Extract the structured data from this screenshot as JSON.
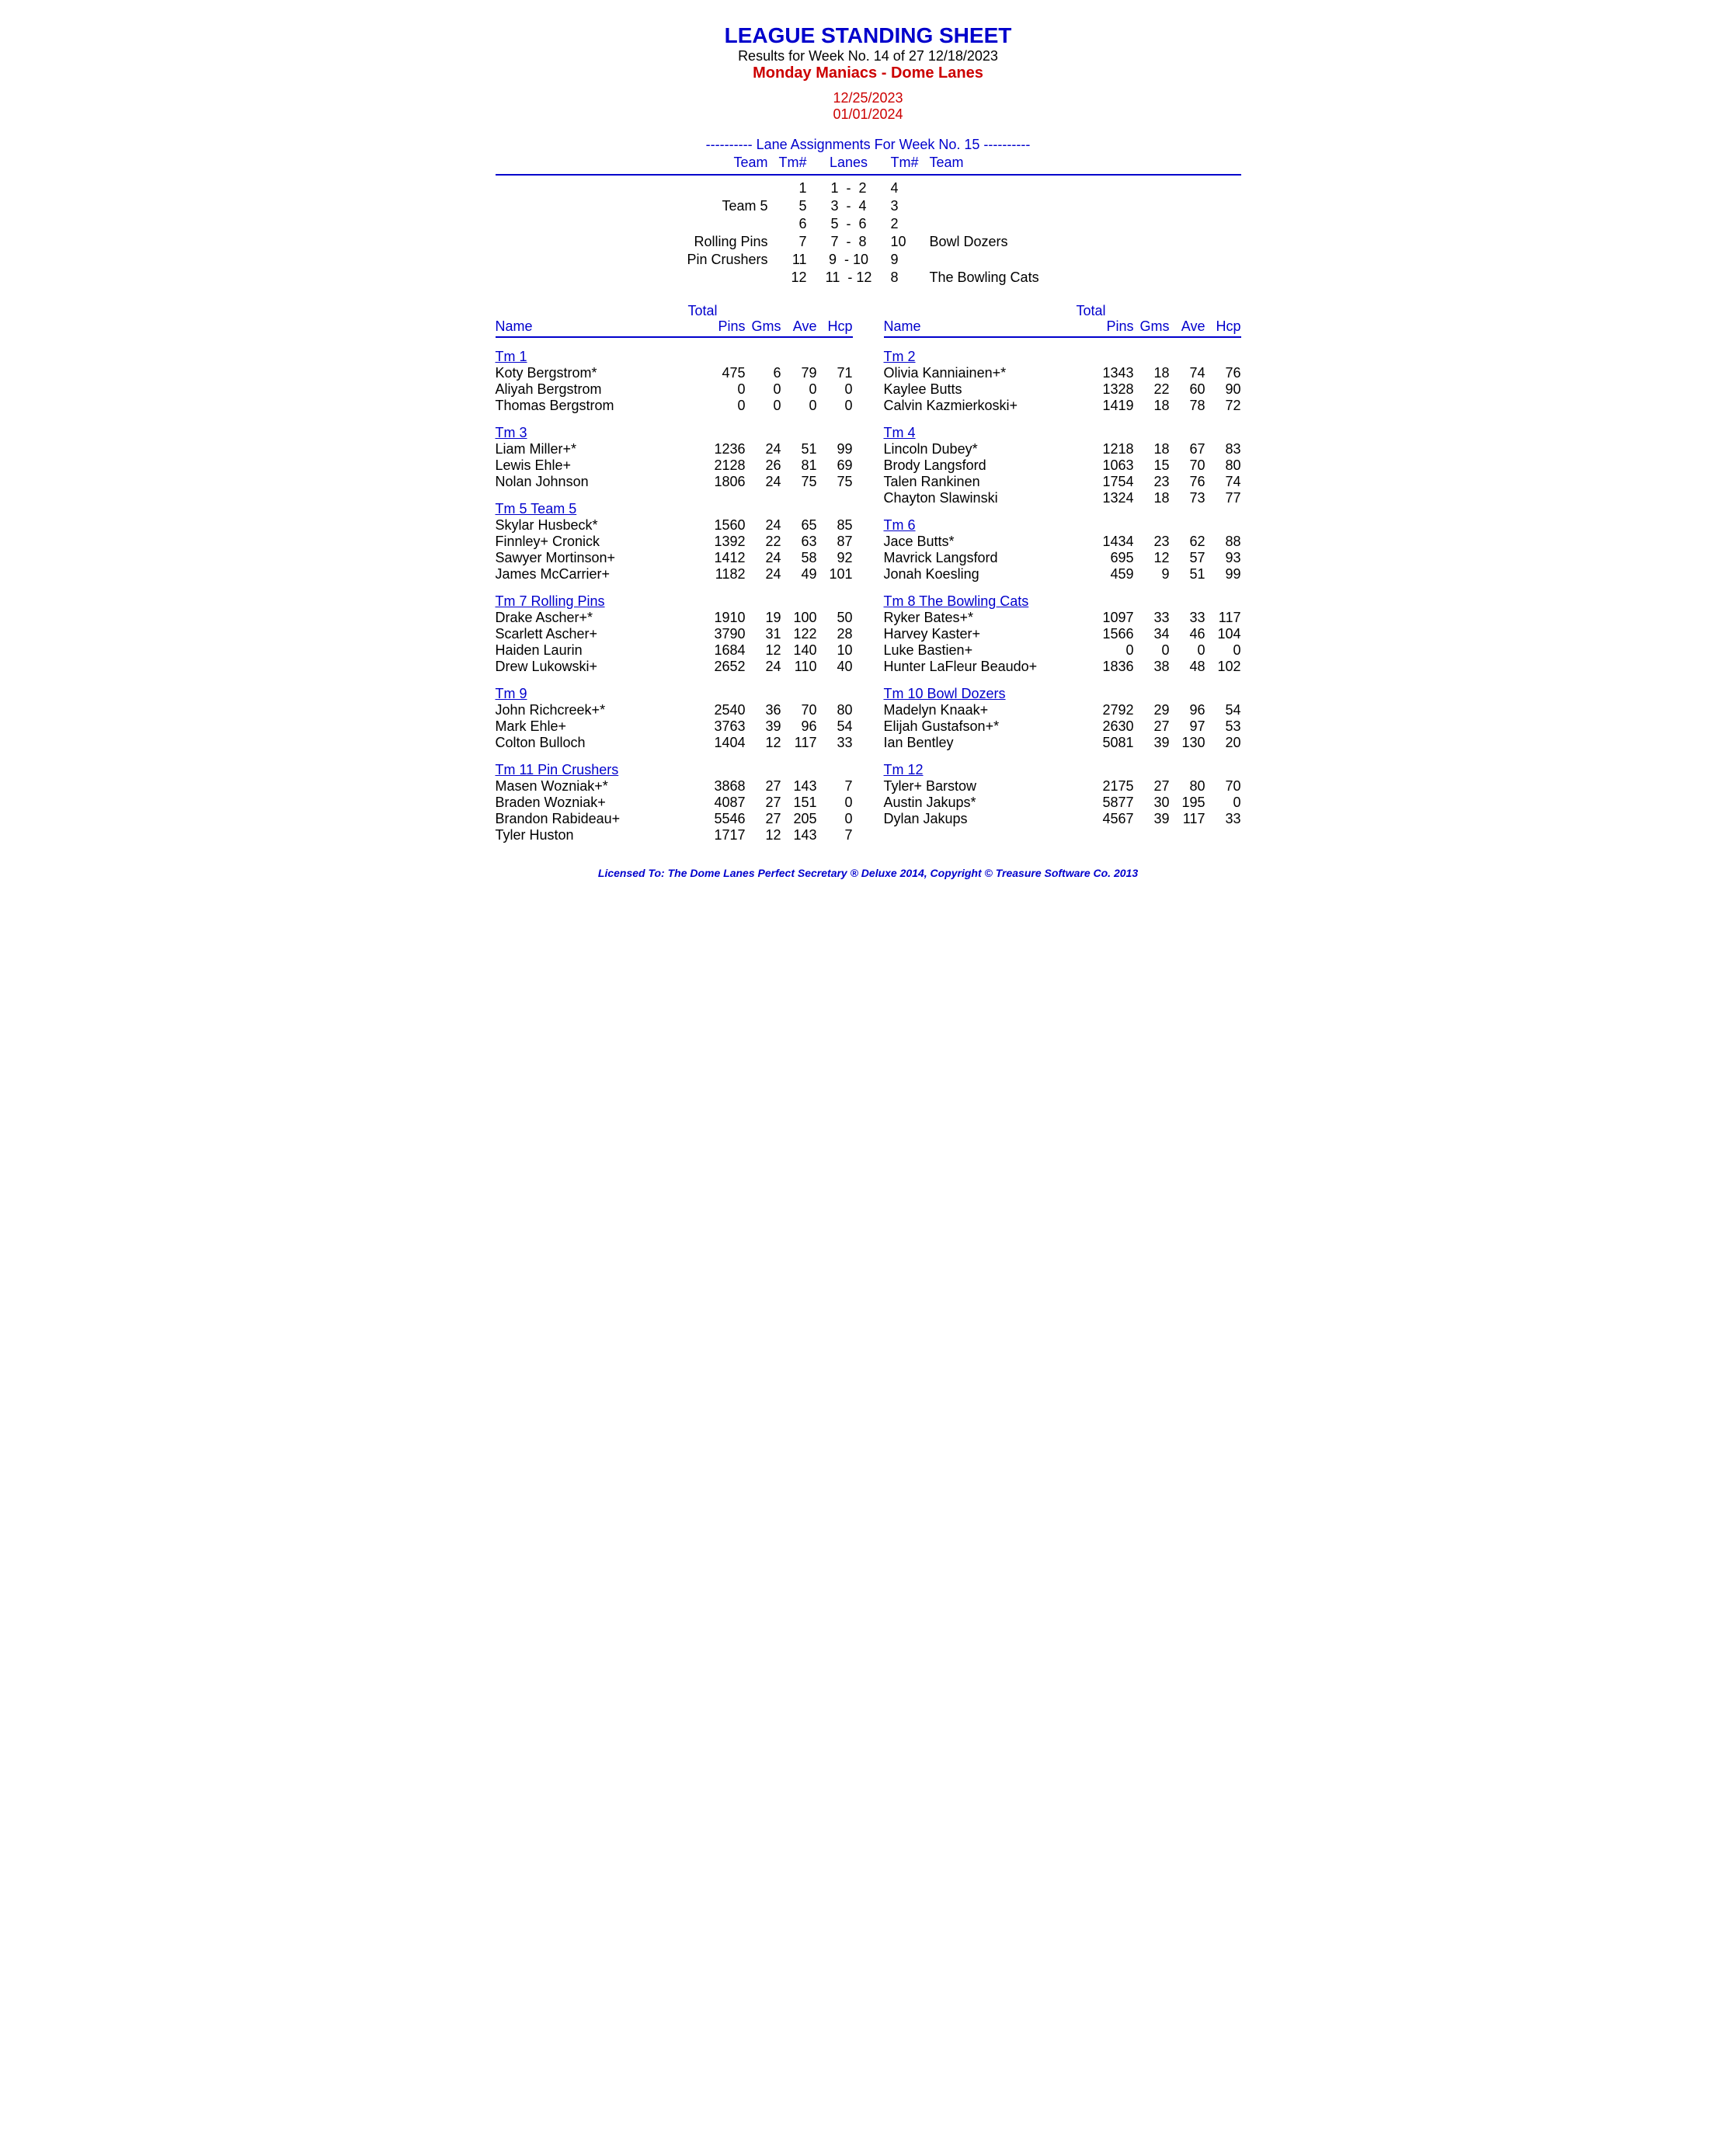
{
  "colors": {
    "blue": "#0000cc",
    "red": "#cc0000",
    "black": "#000000",
    "bg": "#ffffff"
  },
  "header": {
    "title": "LEAGUE STANDING SHEET",
    "subtitle": "Results for Week No. 14 of 27    12/18/2023",
    "league": "Monday Maniacs - Dome Lanes",
    "date1": "12/25/2023",
    "date2": "01/01/2024"
  },
  "lane": {
    "heading": "---------- Lane Assignments For Week No. 15 ----------",
    "col_labels": {
      "team": "Team",
      "tmn": "Tm#",
      "lanes": "Lanes",
      "tmn2": "Tm#",
      "team2": "Team"
    },
    "rows": [
      {
        "team": "",
        "tmn": "1",
        "lanes": "1  -  2",
        "tmn2": "4",
        "team2": ""
      },
      {
        "team": "Team 5",
        "tmn": "5",
        "lanes": "3  -  4",
        "tmn2": "3",
        "team2": ""
      },
      {
        "team": "",
        "tmn": "6",
        "lanes": "5  -  6",
        "tmn2": "2",
        "team2": ""
      },
      {
        "team": "Rolling Pins",
        "tmn": "7",
        "lanes": "7  -  8",
        "tmn2": "10",
        "team2": "Bowl Dozers"
      },
      {
        "team": "Pin Crushers",
        "tmn": "11",
        "lanes": "9  - 10",
        "tmn2": "9",
        "team2": ""
      },
      {
        "team": "",
        "tmn": "12",
        "lanes": "11  - 12",
        "tmn2": "8",
        "team2": "The Bowling Cats"
      }
    ]
  },
  "colheads": {
    "name": "Name",
    "total": "Total",
    "pins": "Pins",
    "gms": "Gms",
    "ave": "Ave",
    "hcp": "Hcp"
  },
  "left_teams": [
    {
      "name": "Tm 1",
      "players": [
        {
          "name": "Koty Bergstrom*",
          "pins": "475",
          "gms": "6",
          "ave": "79",
          "hcp": "71"
        },
        {
          "name": "Aliyah Bergstrom",
          "pins": "0",
          "gms": "0",
          "ave": "0",
          "hcp": "0"
        },
        {
          "name": "Thomas Bergstrom",
          "pins": "0",
          "gms": "0",
          "ave": "0",
          "hcp": "0"
        }
      ]
    },
    {
      "name": "Tm 3",
      "players": [
        {
          "name": "Liam Miller+*",
          "pins": "1236",
          "gms": "24",
          "ave": "51",
          "hcp": "99"
        },
        {
          "name": "Lewis Ehle+",
          "pins": "2128",
          "gms": "26",
          "ave": "81",
          "hcp": "69"
        },
        {
          "name": "Nolan Johnson",
          "pins": "1806",
          "gms": "24",
          "ave": "75",
          "hcp": "75"
        }
      ]
    },
    {
      "name": "Tm 5 Team 5",
      "players": [
        {
          "name": "Skylar Husbeck*",
          "pins": "1560",
          "gms": "24",
          "ave": "65",
          "hcp": "85"
        },
        {
          "name": "Finnley+ Cronick",
          "pins": "1392",
          "gms": "22",
          "ave": "63",
          "hcp": "87"
        },
        {
          "name": "Sawyer Mortinson+",
          "pins": "1412",
          "gms": "24",
          "ave": "58",
          "hcp": "92"
        },
        {
          "name": "James McCarrier+",
          "pins": "1182",
          "gms": "24",
          "ave": "49",
          "hcp": "101"
        }
      ]
    },
    {
      "name": "Tm 7 Rolling Pins",
      "players": [
        {
          "name": "Drake Ascher+*",
          "pins": "1910",
          "gms": "19",
          "ave": "100",
          "hcp": "50"
        },
        {
          "name": "Scarlett Ascher+",
          "pins": "3790",
          "gms": "31",
          "ave": "122",
          "hcp": "28"
        },
        {
          "name": "Haiden Laurin",
          "pins": "1684",
          "gms": "12",
          "ave": "140",
          "hcp": "10"
        },
        {
          "name": "Drew Lukowski+",
          "pins": "2652",
          "gms": "24",
          "ave": "110",
          "hcp": "40"
        }
      ]
    },
    {
      "name": "Tm 9",
      "players": [
        {
          "name": "John Richcreek+*",
          "pins": "2540",
          "gms": "36",
          "ave": "70",
          "hcp": "80"
        },
        {
          "name": "Mark Ehle+",
          "pins": "3763",
          "gms": "39",
          "ave": "96",
          "hcp": "54"
        },
        {
          "name": "Colton Bulloch",
          "pins": "1404",
          "gms": "12",
          "ave": "117",
          "hcp": "33"
        }
      ]
    },
    {
      "name": "Tm 11 Pin Crushers",
      "players": [
        {
          "name": "Masen Wozniak+*",
          "pins": "3868",
          "gms": "27",
          "ave": "143",
          "hcp": "7"
        },
        {
          "name": "Braden Wozniak+",
          "pins": "4087",
          "gms": "27",
          "ave": "151",
          "hcp": "0"
        },
        {
          "name": "Brandon Rabideau+",
          "pins": "5546",
          "gms": "27",
          "ave": "205",
          "hcp": "0"
        },
        {
          "name": "Tyler Huston",
          "pins": "1717",
          "gms": "12",
          "ave": "143",
          "hcp": "7"
        }
      ]
    }
  ],
  "right_teams": [
    {
      "name": "Tm 2",
      "players": [
        {
          "name": "Olivia Kanniainen+*",
          "pins": "1343",
          "gms": "18",
          "ave": "74",
          "hcp": "76"
        },
        {
          "name": "Kaylee Butts",
          "pins": "1328",
          "gms": "22",
          "ave": "60",
          "hcp": "90"
        },
        {
          "name": "Calvin Kazmierkoski+",
          "pins": "1419",
          "gms": "18",
          "ave": "78",
          "hcp": "72"
        }
      ]
    },
    {
      "name": "Tm 4",
      "players": [
        {
          "name": "Lincoln Dubey*",
          "pins": "1218",
          "gms": "18",
          "ave": "67",
          "hcp": "83"
        },
        {
          "name": "Brody Langsford",
          "pins": "1063",
          "gms": "15",
          "ave": "70",
          "hcp": "80"
        },
        {
          "name": "Talen Rankinen",
          "pins": "1754",
          "gms": "23",
          "ave": "76",
          "hcp": "74"
        },
        {
          "name": "Chayton Slawinski",
          "pins": "1324",
          "gms": "18",
          "ave": "73",
          "hcp": "77"
        }
      ]
    },
    {
      "name": "Tm 6",
      "players": [
        {
          "name": "Jace Butts*",
          "pins": "1434",
          "gms": "23",
          "ave": "62",
          "hcp": "88"
        },
        {
          "name": "Mavrick Langsford",
          "pins": "695",
          "gms": "12",
          "ave": "57",
          "hcp": "93"
        },
        {
          "name": "Jonah Koesling",
          "pins": "459",
          "gms": "9",
          "ave": "51",
          "hcp": "99"
        }
      ]
    },
    {
      "name": "Tm 8 The Bowling Cats",
      "players": [
        {
          "name": "Ryker Bates+*",
          "pins": "1097",
          "gms": "33",
          "ave": "33",
          "hcp": "117"
        },
        {
          "name": "Harvey Kaster+",
          "pins": "1566",
          "gms": "34",
          "ave": "46",
          "hcp": "104"
        },
        {
          "name": "Luke Bastien+",
          "pins": "0",
          "gms": "0",
          "ave": "0",
          "hcp": "0"
        },
        {
          "name": "Hunter LaFleur Beaudo+",
          "pins": "1836",
          "gms": "38",
          "ave": "48",
          "hcp": "102"
        }
      ]
    },
    {
      "name": "Tm 10 Bowl Dozers",
      "players": [
        {
          "name": "Madelyn Knaak+",
          "pins": "2792",
          "gms": "29",
          "ave": "96",
          "hcp": "54"
        },
        {
          "name": "Elijah Gustafson+*",
          "pins": "2630",
          "gms": "27",
          "ave": "97",
          "hcp": "53"
        },
        {
          "name": "Ian Bentley",
          "pins": "5081",
          "gms": "39",
          "ave": "130",
          "hcp": "20"
        }
      ]
    },
    {
      "name": "Tm 12",
      "players": [
        {
          "name": "Tyler+ Barstow",
          "pins": "2175",
          "gms": "27",
          "ave": "80",
          "hcp": "70"
        },
        {
          "name": "Austin Jakups*",
          "pins": "5877",
          "gms": "30",
          "ave": "195",
          "hcp": "0"
        },
        {
          "name": "Dylan Jakups",
          "pins": "4567",
          "gms": "39",
          "ave": "117",
          "hcp": "33"
        }
      ]
    }
  ],
  "footer": "Licensed To: The Dome Lanes    Perfect Secretary ® Deluxe  2014, Copyright © Treasure Software Co. 2013"
}
